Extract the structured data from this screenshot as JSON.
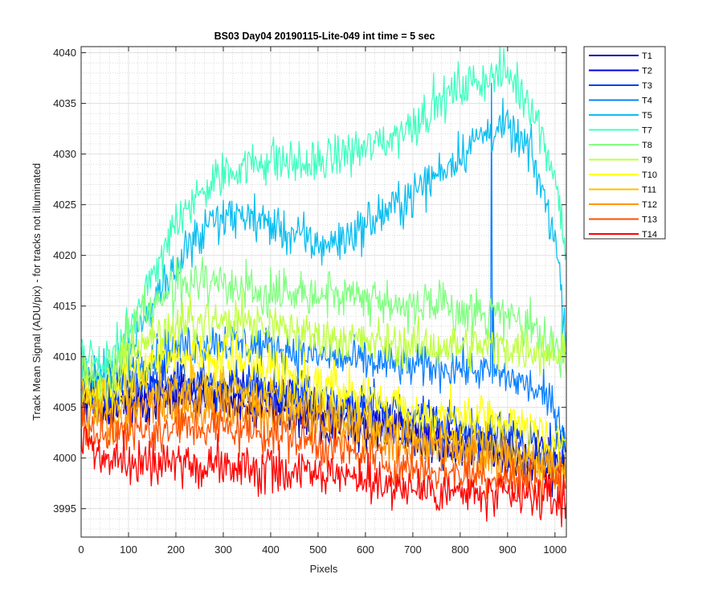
{
  "chart_data": {
    "type": "line",
    "title": "BS03 Day04 20190115-Lite-049 int time = 5 sec",
    "xlabel": "Pixels",
    "ylabel": "Track Mean Signal (ADU/pix) - for tracks not illuminated",
    "xlim": [
      0,
      1024
    ],
    "ylim": [
      3992.2,
      4040.6
    ],
    "xticks": [
      0,
      100,
      200,
      300,
      400,
      500,
      600,
      700,
      800,
      900,
      1000
    ],
    "yticks": [
      3995,
      4000,
      4005,
      4010,
      4015,
      4020,
      4025,
      4030,
      4035,
      4040
    ],
    "grid": true,
    "minor_grid": true,
    "legend_position": "outside-top-right",
    "series": [
      {
        "name": "T1",
        "color": "#0000AA",
        "noise": 1.5,
        "points": [
          [
            0,
            4006
          ],
          [
            50,
            4005
          ],
          [
            100,
            4005.5
          ],
          [
            200,
            4006
          ],
          [
            300,
            4005.5
          ],
          [
            400,
            4005
          ],
          [
            500,
            4004
          ],
          [
            600,
            4003
          ],
          [
            700,
            4002
          ],
          [
            800,
            4001
          ],
          [
            900,
            4000
          ],
          [
            1000,
            3999
          ],
          [
            1024,
            3999
          ]
        ]
      },
      {
        "name": "T2",
        "color": "#0000DD",
        "noise": 1.6,
        "points": [
          [
            0,
            4007
          ],
          [
            50,
            4005
          ],
          [
            100,
            4006
          ],
          [
            200,
            4007
          ],
          [
            300,
            4006.5
          ],
          [
            400,
            4006
          ],
          [
            500,
            4005
          ],
          [
            600,
            4004
          ],
          [
            700,
            4003
          ],
          [
            800,
            4002
          ],
          [
            900,
            4001
          ],
          [
            1000,
            4000
          ],
          [
            1024,
            4000
          ]
        ]
      },
      {
        "name": "T3",
        "color": "#0040F0",
        "noise": 1.6,
        "points": [
          [
            0,
            4007
          ],
          [
            50,
            4006
          ],
          [
            100,
            4007
          ],
          [
            200,
            4008
          ],
          [
            300,
            4007.5
          ],
          [
            400,
            4007
          ],
          [
            500,
            4006
          ],
          [
            600,
            4005
          ],
          [
            700,
            4004
          ],
          [
            800,
            4003
          ],
          [
            900,
            4002
          ],
          [
            1000,
            4001
          ],
          [
            1024,
            4001
          ]
        ]
      },
      {
        "name": "T4",
        "color": "#0A80FF",
        "noise": 1.4,
        "points": [
          [
            0,
            4009
          ],
          [
            50,
            4007
          ],
          [
            100,
            4009
          ],
          [
            200,
            4011
          ],
          [
            300,
            4011.5
          ],
          [
            400,
            4011
          ],
          [
            500,
            4010
          ],
          [
            600,
            4009.5
          ],
          [
            700,
            4009
          ],
          [
            800,
            4009
          ],
          [
            900,
            4008
          ],
          [
            950,
            4007
          ],
          [
            1000,
            4005
          ],
          [
            1024,
            4002
          ]
        ]
      },
      {
        "name": "T5",
        "color": "#0ABEF0",
        "noise": 1.5,
        "points": [
          [
            0,
            4009
          ],
          [
            50,
            4008
          ],
          [
            100,
            4011
          ],
          [
            150,
            4015
          ],
          [
            200,
            4019
          ],
          [
            250,
            4022
          ],
          [
            300,
            4023.5
          ],
          [
            350,
            4024
          ],
          [
            400,
            4023
          ],
          [
            450,
            4022
          ],
          [
            500,
            4021
          ],
          [
            550,
            4021.5
          ],
          [
            600,
            4023
          ],
          [
            650,
            4024.5
          ],
          [
            700,
            4026
          ],
          [
            750,
            4028
          ],
          [
            800,
            4030
          ],
          [
            850,
            4032
          ],
          [
            880,
            4032.5
          ],
          [
            900,
            4032.5
          ],
          [
            950,
            4030
          ],
          [
            1000,
            4022
          ],
          [
            1024,
            4012
          ]
        ]
      },
      {
        "name": "T7",
        "color": "#40FFC0",
        "noise": 1.5,
        "points": [
          [
            0,
            4010
          ],
          [
            50,
            4009
          ],
          [
            100,
            4013
          ],
          [
            150,
            4018
          ],
          [
            200,
            4023
          ],
          [
            250,
            4026
          ],
          [
            300,
            4028
          ],
          [
            350,
            4029
          ],
          [
            400,
            4029.5
          ],
          [
            450,
            4029
          ],
          [
            500,
            4029
          ],
          [
            550,
            4030
          ],
          [
            600,
            4030.5
          ],
          [
            650,
            4031.5
          ],
          [
            700,
            4033
          ],
          [
            750,
            4035
          ],
          [
            800,
            4036.5
          ],
          [
            850,
            4037.5
          ],
          [
            900,
            4038
          ],
          [
            950,
            4035
          ],
          [
            1000,
            4028
          ],
          [
            1024,
            4020
          ]
        ]
      },
      {
        "name": "T8",
        "color": "#80FF80",
        "noise": 1.5,
        "points": [
          [
            0,
            4009
          ],
          [
            50,
            4008
          ],
          [
            100,
            4012
          ],
          [
            150,
            4015
          ],
          [
            200,
            4017
          ],
          [
            250,
            4017.5
          ],
          [
            300,
            4017
          ],
          [
            400,
            4016.5
          ],
          [
            500,
            4016.5
          ],
          [
            600,
            4016
          ],
          [
            700,
            4015
          ],
          [
            800,
            4014.5
          ],
          [
            900,
            4014
          ],
          [
            1000,
            4011
          ],
          [
            1024,
            4010
          ]
        ]
      },
      {
        "name": "T9",
        "color": "#BFFF40",
        "noise": 1.5,
        "points": [
          [
            0,
            4008
          ],
          [
            50,
            4007
          ],
          [
            100,
            4010
          ],
          [
            200,
            4013
          ],
          [
            300,
            4013.5
          ],
          [
            400,
            4013
          ],
          [
            500,
            4012
          ],
          [
            600,
            4011.5
          ],
          [
            700,
            4011
          ],
          [
            800,
            4011
          ],
          [
            900,
            4011
          ],
          [
            1000,
            4010.5
          ],
          [
            1024,
            4010
          ]
        ]
      },
      {
        "name": "T10",
        "color": "#FFFF00",
        "noise": 1.5,
        "points": [
          [
            0,
            4007
          ],
          [
            50,
            4006
          ],
          [
            100,
            4008
          ],
          [
            200,
            4010
          ],
          [
            300,
            4010
          ],
          [
            400,
            4009
          ],
          [
            500,
            4007.5
          ],
          [
            600,
            4006
          ],
          [
            700,
            4004.5
          ],
          [
            800,
            4004
          ],
          [
            900,
            4003.5
          ],
          [
            1000,
            4002
          ],
          [
            1024,
            4001
          ]
        ]
      },
      {
        "name": "T11",
        "color": "#FFC000",
        "noise": 1.5,
        "points": [
          [
            0,
            4006
          ],
          [
            50,
            4005
          ],
          [
            100,
            4006
          ],
          [
            200,
            4007
          ],
          [
            300,
            4007
          ],
          [
            400,
            4006
          ],
          [
            500,
            4005
          ],
          [
            600,
            4003.5
          ],
          [
            700,
            4002.5
          ],
          [
            800,
            4001.5
          ],
          [
            900,
            4000.5
          ],
          [
            1000,
            3999.5
          ],
          [
            1024,
            3999
          ]
        ]
      },
      {
        "name": "T12",
        "color": "#FF9600",
        "noise": 1.5,
        "points": [
          [
            0,
            4005
          ],
          [
            50,
            4003.5
          ],
          [
            100,
            4004
          ],
          [
            200,
            4005
          ],
          [
            300,
            4005
          ],
          [
            400,
            4004.5
          ],
          [
            500,
            4003.5
          ],
          [
            600,
            4002
          ],
          [
            700,
            4001
          ],
          [
            800,
            4000
          ],
          [
            900,
            3999.5
          ],
          [
            1000,
            3999
          ],
          [
            1024,
            3998.5
          ]
        ]
      },
      {
        "name": "T13",
        "color": "#FF5000",
        "noise": 1.5,
        "points": [
          [
            0,
            4004
          ],
          [
            50,
            4002
          ],
          [
            100,
            4002.5
          ],
          [
            200,
            4003
          ],
          [
            300,
            4003
          ],
          [
            400,
            4002.5
          ],
          [
            500,
            4001.5
          ],
          [
            600,
            4000
          ],
          [
            700,
            3999
          ],
          [
            800,
            3998.5
          ],
          [
            900,
            3998
          ],
          [
            1000,
            3997.5
          ],
          [
            1024,
            3997
          ]
        ]
      },
      {
        "name": "T14",
        "color": "#FF0000",
        "noise": 1.5,
        "points": [
          [
            0,
            4002
          ],
          [
            50,
            4000
          ],
          [
            100,
            3999.5
          ],
          [
            200,
            3999.5
          ],
          [
            300,
            3999
          ],
          [
            400,
            3999
          ],
          [
            500,
            3998.5
          ],
          [
            600,
            3998
          ],
          [
            700,
            3997
          ],
          [
            800,
            3996.5
          ],
          [
            900,
            3996
          ],
          [
            1000,
            3996
          ],
          [
            1024,
            3995.5
          ]
        ]
      }
    ]
  }
}
